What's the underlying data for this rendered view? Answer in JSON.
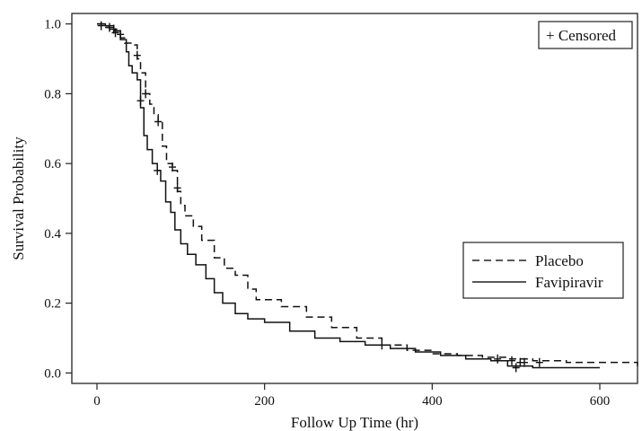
{
  "chart_data": {
    "type": "line",
    "title": "",
    "xlabel": "Follow Up Time (hr)",
    "ylabel": "Survival Probability",
    "xlim": [
      -30,
      645
    ],
    "ylim": [
      -0.03,
      1.03
    ],
    "xticks": [
      0,
      200,
      400,
      600
    ],
    "yticks": [
      0.0,
      0.2,
      0.4,
      0.6,
      0.8,
      1.0
    ],
    "xtick_labels": [
      "0",
      "200",
      "400",
      "600"
    ],
    "ytick_labels": [
      "0.0",
      "0.2",
      "0.4",
      "0.6",
      "0.8",
      "1.0"
    ],
    "grid": false,
    "censor_legend": "+ Censored",
    "legend_position": "center-right",
    "series": [
      {
        "name": "Placebo",
        "line_style": "dashed",
        "points": [
          [
            0,
            1.0
          ],
          [
            8,
            0.99
          ],
          [
            15,
            0.985
          ],
          [
            22,
            0.98
          ],
          [
            28,
            0.96
          ],
          [
            33,
            0.945
          ],
          [
            45,
            0.94
          ],
          [
            48,
            0.9
          ],
          [
            52,
            0.86
          ],
          [
            58,
            0.8
          ],
          [
            63,
            0.77
          ],
          [
            68,
            0.74
          ],
          [
            73,
            0.72
          ],
          [
            78,
            0.65
          ],
          [
            83,
            0.6
          ],
          [
            90,
            0.58
          ],
          [
            96,
            0.52
          ],
          [
            100,
            0.48
          ],
          [
            105,
            0.45
          ],
          [
            115,
            0.42
          ],
          [
            125,
            0.38
          ],
          [
            140,
            0.33
          ],
          [
            152,
            0.3
          ],
          [
            165,
            0.28
          ],
          [
            180,
            0.24
          ],
          [
            190,
            0.21
          ],
          [
            220,
            0.19
          ],
          [
            250,
            0.16
          ],
          [
            280,
            0.13
          ],
          [
            310,
            0.1
          ],
          [
            340,
            0.08
          ],
          [
            370,
            0.065
          ],
          [
            400,
            0.055
          ],
          [
            430,
            0.05
          ],
          [
            460,
            0.045
          ],
          [
            490,
            0.04
          ],
          [
            520,
            0.035
          ],
          [
            560,
            0.03
          ],
          [
            600,
            0.03
          ],
          [
            645,
            0.015
          ]
        ],
        "censored": [
          [
            15,
            0.99
          ],
          [
            28,
            0.97
          ],
          [
            48,
            0.91
          ],
          [
            58,
            0.8
          ],
          [
            73,
            0.72
          ],
          [
            90,
            0.59
          ],
          [
            96,
            0.53
          ],
          [
            340,
            0.08
          ],
          [
            478,
            0.04
          ],
          [
            495,
            0.035
          ],
          [
            505,
            0.03
          ],
          [
            510,
            0.03
          ],
          [
            528,
            0.03
          ]
        ]
      },
      {
        "name": "Favipiravir",
        "line_style": "solid",
        "points": [
          [
            0,
            1.0
          ],
          [
            10,
            0.995
          ],
          [
            20,
            0.98
          ],
          [
            28,
            0.955
          ],
          [
            35,
            0.92
          ],
          [
            38,
            0.88
          ],
          [
            42,
            0.86
          ],
          [
            48,
            0.84
          ],
          [
            52,
            0.76
          ],
          [
            56,
            0.68
          ],
          [
            60,
            0.64
          ],
          [
            66,
            0.6
          ],
          [
            72,
            0.58
          ],
          [
            76,
            0.55
          ],
          [
            82,
            0.49
          ],
          [
            88,
            0.46
          ],
          [
            93,
            0.41
          ],
          [
            100,
            0.37
          ],
          [
            108,
            0.34
          ],
          [
            118,
            0.31
          ],
          [
            130,
            0.27
          ],
          [
            140,
            0.23
          ],
          [
            150,
            0.2
          ],
          [
            165,
            0.17
          ],
          [
            180,
            0.155
          ],
          [
            200,
            0.145
          ],
          [
            230,
            0.12
          ],
          [
            260,
            0.1
          ],
          [
            290,
            0.09
          ],
          [
            320,
            0.08
          ],
          [
            350,
            0.07
          ],
          [
            380,
            0.06
          ],
          [
            410,
            0.05
          ],
          [
            440,
            0.04
          ],
          [
            470,
            0.035
          ],
          [
            490,
            0.02
          ],
          [
            520,
            0.015
          ],
          [
            560,
            0.015
          ],
          [
            600,
            0.015
          ]
        ],
        "censored": [
          [
            5,
            0.995
          ],
          [
            20,
            0.985
          ],
          [
            22,
            0.975
          ],
          [
            52,
            0.78
          ],
          [
            72,
            0.58
          ],
          [
            500,
            0.015
          ]
        ]
      }
    ]
  }
}
